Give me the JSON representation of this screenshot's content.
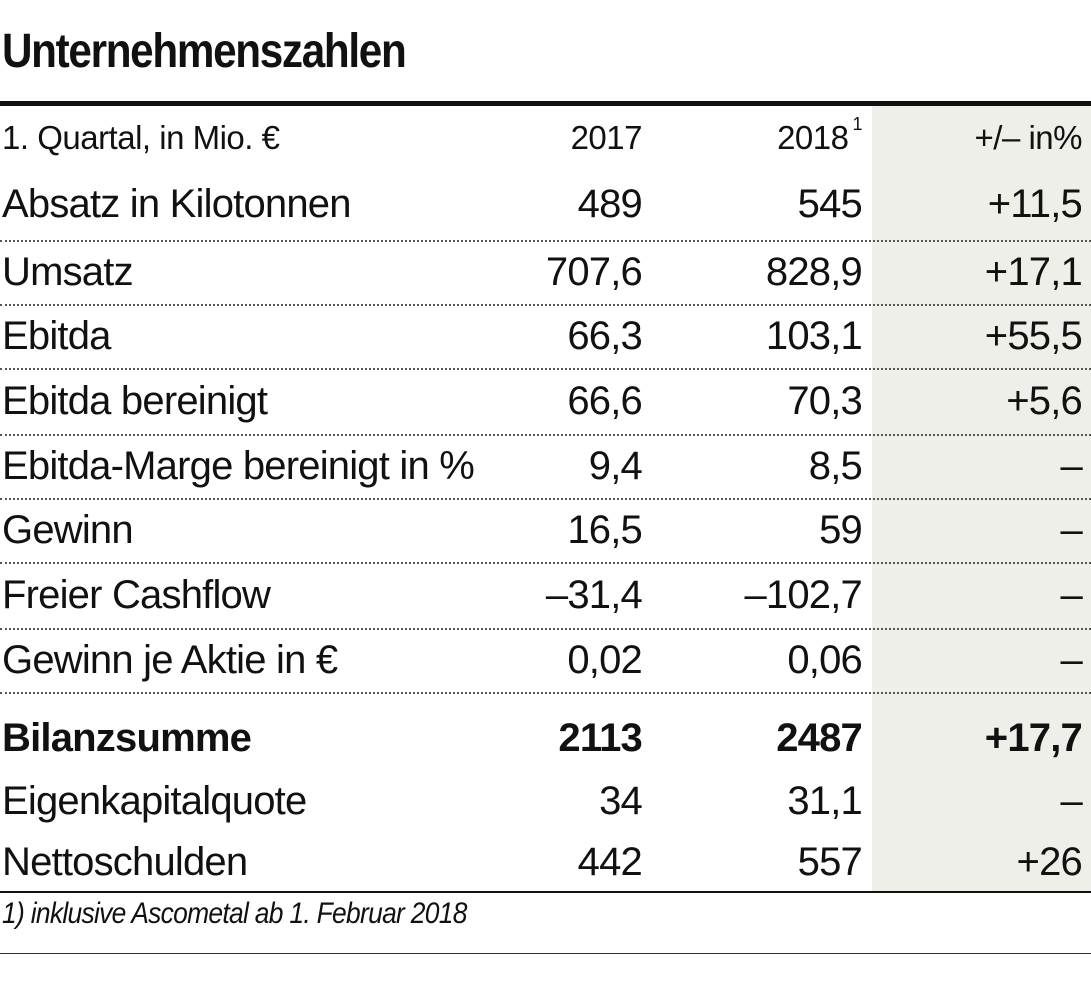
{
  "title": "Unternehmenszahlen",
  "chart_data": {
    "type": "table",
    "columns": [
      "1. Quartal, in Mio. €",
      "2017",
      "2018",
      "+/– in%"
    ],
    "header_footnote_marker": "1",
    "rows": [
      {
        "label": "Absatz in Kilotonnen",
        "v2017": "489",
        "v2018": "545",
        "change": "+11,5",
        "bold": false
      },
      {
        "label": "Umsatz",
        "v2017": "707,6",
        "v2018": "828,9",
        "change": "+17,1",
        "bold": false
      },
      {
        "label": "Ebitda",
        "v2017": "66,3",
        "v2018": "103,1",
        "change": "+55,5",
        "bold": false
      },
      {
        "label": "Ebitda bereinigt",
        "v2017": "66,6",
        "v2018": "70,3",
        "change": "+5,6",
        "bold": false
      },
      {
        "label": "Ebitda-Marge bereinigt in %",
        "v2017": "9,4",
        "v2018": "8,5",
        "change": "–",
        "bold": false
      },
      {
        "label": "Gewinn",
        "v2017": "16,5",
        "v2018": "59",
        "change": "–",
        "bold": false
      },
      {
        "label": "Freier Cashflow",
        "v2017": "–31,4",
        "v2018": "–102,7",
        "change": "–",
        "bold": false
      },
      {
        "label": "Gewinn je Aktie in €",
        "v2017": "0,02",
        "v2018": "0,06",
        "change": "–",
        "bold": false
      },
      {
        "label": "Bilanzsumme",
        "v2017": "2113",
        "v2018": "2487",
        "change": "+17,7",
        "bold": true
      },
      {
        "label": "Eigenkapitalquote",
        "v2017": "34",
        "v2018": "31,1",
        "change": "–",
        "bold": false
      },
      {
        "label": "Nettoschulden",
        "v2017": "442",
        "v2018": "557",
        "change": "+26",
        "bold": false
      }
    ]
  },
  "footnote": "1) inklusive Ascometal ab 1. Februar 2018",
  "colors": {
    "text": "#111111",
    "shade": "#efefea",
    "rule": "#111111"
  }
}
